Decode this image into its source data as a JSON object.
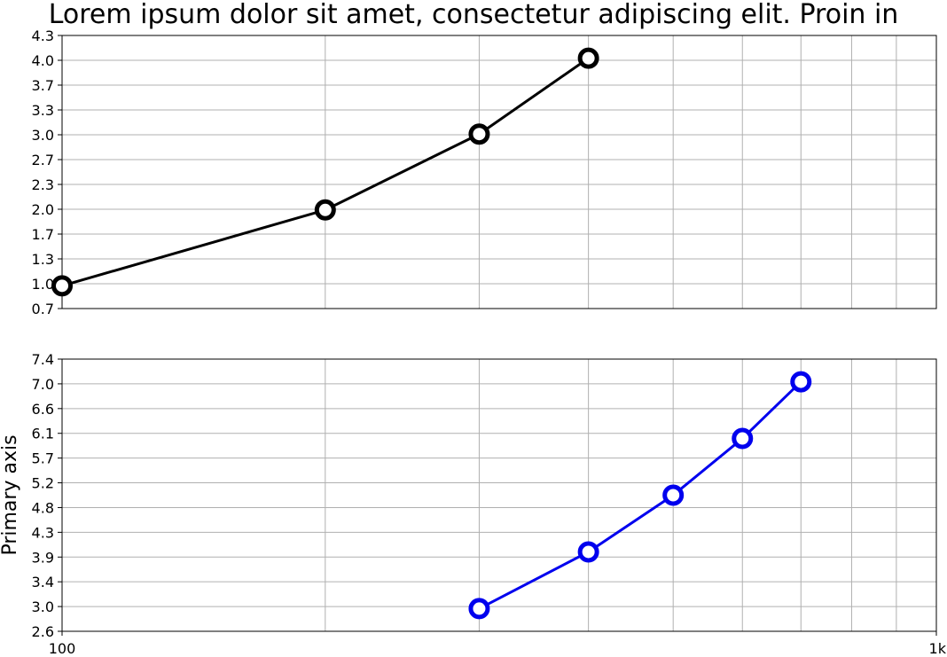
{
  "chart_data": {
    "type": "line",
    "title": "Lorem ipsum dolor sit amet, consectetur adipiscing elit. Proin in",
    "x_scale": "log",
    "xlim": [
      100,
      1000
    ],
    "x_tick_labels": [
      "100",
      "1k"
    ],
    "grid": true,
    "panels": [
      {
        "ylabel": "",
        "ylim": [
          0.7,
          4.3
        ],
        "y_tick_labels": [
          "0.7",
          "1.0",
          "1.3",
          "1.7",
          "2.0",
          "2.3",
          "2.7",
          "3.0",
          "3.3",
          "3.7",
          "4.0",
          "4.3"
        ],
        "series": [
          {
            "color": "#000000",
            "x": [
              100,
              200,
              300,
              400
            ],
            "y": [
              1,
              2,
              3,
              4
            ]
          }
        ]
      },
      {
        "ylabel": "Primary axis",
        "ylim": [
          2.6,
          7.4
        ],
        "y_tick_labels": [
          "2.6",
          "3.0",
          "3.4",
          "3.9",
          "4.3",
          "4.8",
          "5.2",
          "5.7",
          "6.1",
          "6.6",
          "7.0",
          "7.4"
        ],
        "series": [
          {
            "color": "#0000ee",
            "x": [
              300,
              400,
              500,
              600,
              700
            ],
            "y": [
              3,
              4,
              5,
              6,
              7
            ]
          }
        ]
      }
    ]
  }
}
